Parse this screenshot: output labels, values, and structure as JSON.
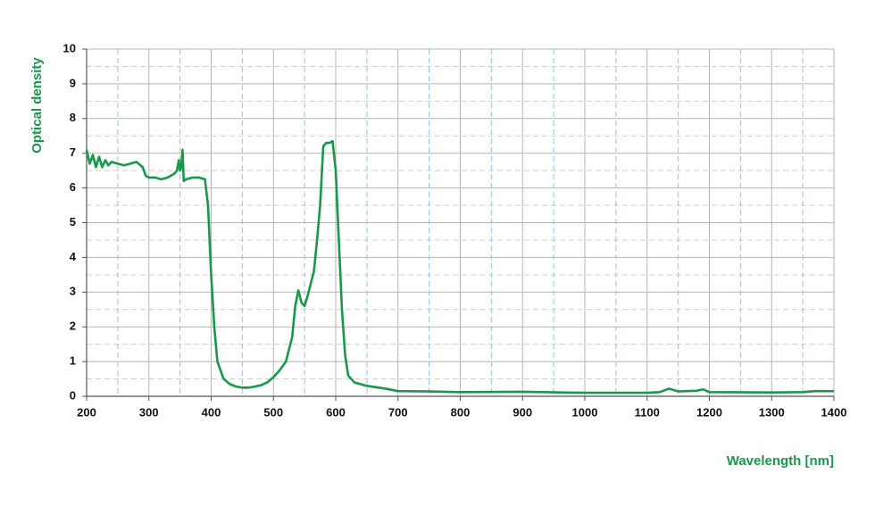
{
  "chart_data": {
    "type": "line",
    "xlabel": "Wavelength [nm]",
    "ylabel": "Optical density",
    "x": [
      200,
      205,
      210,
      215,
      220,
      225,
      230,
      235,
      240,
      250,
      260,
      270,
      280,
      290,
      295,
      300,
      310,
      320,
      330,
      340,
      345,
      348,
      350,
      352,
      354,
      356,
      360,
      370,
      380,
      390,
      395,
      400,
      405,
      410,
      420,
      430,
      440,
      450,
      460,
      470,
      480,
      490,
      500,
      510,
      520,
      530,
      535,
      540,
      545,
      550,
      555,
      565,
      570,
      575,
      580,
      585,
      590,
      595,
      600,
      605,
      610,
      615,
      620,
      630,
      650,
      680,
      700,
      750,
      800,
      900,
      1000,
      1100,
      1120,
      1135,
      1150,
      1180,
      1190,
      1200,
      1300,
      1350,
      1370,
      1400
    ],
    "values": [
      7.1,
      6.7,
      6.95,
      6.6,
      6.9,
      6.6,
      6.8,
      6.65,
      6.75,
      6.7,
      6.65,
      6.7,
      6.75,
      6.6,
      6.35,
      6.3,
      6.3,
      6.25,
      6.3,
      6.4,
      6.5,
      6.8,
      6.5,
      6.6,
      7.1,
      6.2,
      6.25,
      6.3,
      6.3,
      6.25,
      5.5,
      3.5,
      2.0,
      1.0,
      0.5,
      0.35,
      0.28,
      0.25,
      0.25,
      0.28,
      0.32,
      0.4,
      0.55,
      0.75,
      1.0,
      1.7,
      2.6,
      3.05,
      2.7,
      2.6,
      2.9,
      3.6,
      4.5,
      5.5,
      7.2,
      7.3,
      7.3,
      7.35,
      6.5,
      4.5,
      2.5,
      1.2,
      0.6,
      0.4,
      0.3,
      0.22,
      0.15,
      0.14,
      0.12,
      0.13,
      0.1,
      0.1,
      0.12,
      0.22,
      0.14,
      0.16,
      0.2,
      0.12,
      0.11,
      0.12,
      0.15,
      0.15
    ],
    "color": "#17994a",
    "xlim": [
      200,
      1400
    ],
    "ylim": [
      0,
      10
    ],
    "xticks": [
      200,
      300,
      400,
      500,
      600,
      700,
      800,
      900,
      1000,
      1100,
      1200,
      1300,
      1400
    ],
    "yticks": [
      0,
      1,
      2,
      3,
      4,
      5,
      6,
      7,
      8,
      9,
      10
    ],
    "grid": true
  }
}
